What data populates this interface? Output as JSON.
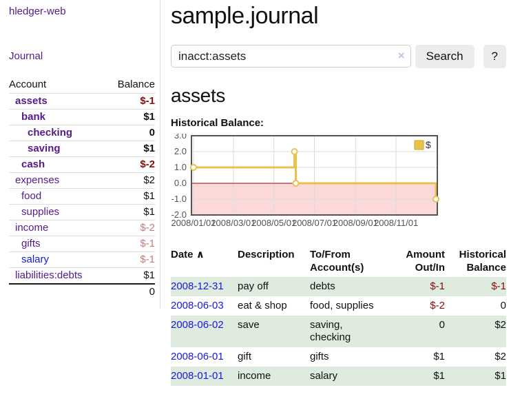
{
  "palette": {
    "link_purple": "#551a8b",
    "link_blue": "#1717e0",
    "negative_red": "#8b0b0b",
    "negative_rose": "#c27e7e",
    "row_stripe_green": "#deebde",
    "chart_line_gold": "#e8c24a",
    "chart_negative_pink": "#fcd9d9",
    "chart_zero_line": "#a40000",
    "button_gray": "#ececec"
  },
  "app_title": "hledger-web",
  "sidebar": {
    "journal_link": "Journal",
    "accounts": {
      "headers": {
        "account": "Account",
        "balance": "Balance"
      },
      "rows": [
        {
          "name": "assets",
          "balance": "$-1"
        },
        {
          "name": "bank",
          "balance": "$1"
        },
        {
          "name": "checking",
          "balance": "0"
        },
        {
          "name": "saving",
          "balance": "$1"
        },
        {
          "name": "cash",
          "balance": "$-2"
        },
        {
          "name": "expenses",
          "balance": "$2"
        },
        {
          "name": "food",
          "balance": "$1"
        },
        {
          "name": "supplies",
          "balance": "$1"
        },
        {
          "name": "income",
          "balance": "$-2"
        },
        {
          "name": "gifts",
          "balance": "$-1"
        },
        {
          "name": "salary",
          "balance": "$-1"
        },
        {
          "name": "liabilities:debts",
          "balance": "$1"
        }
      ],
      "total": "0"
    }
  },
  "header": {
    "title": "sample.journal"
  },
  "search": {
    "value": "inacct:assets",
    "clear_icon": "×",
    "search_button": "Search",
    "help_button": "?"
  },
  "account_page": {
    "heading": "assets",
    "chart_heading": "Historical Balance:"
  },
  "chart_data": {
    "type": "line",
    "title": "Historical Balance",
    "step": true,
    "legend_label": "$",
    "legend_position": "top-right",
    "grid": true,
    "xlim": [
      "2008-01-01",
      "2008-12-31"
    ],
    "ylim": [
      -2,
      3
    ],
    "x_ticks": [
      {
        "date": "2008-01-01",
        "label": "2008/01/01"
      },
      {
        "date": "2008-03-01",
        "label": "2008/03/01"
      },
      {
        "date": "2008-05-01",
        "label": "2008/05/01"
      },
      {
        "date": "2008-07-01",
        "label": "2008/07/01"
      },
      {
        "date": "2008-09-01",
        "label": "2008/09/01"
      },
      {
        "date": "2008-11-01",
        "label": "2008/11/01"
      }
    ],
    "y_ticks": [
      {
        "value": 3,
        "label": "3.0"
      },
      {
        "value": 2,
        "label": "2.0"
      },
      {
        "value": 1,
        "label": "1.0"
      },
      {
        "value": 0,
        "label": "0.0"
      },
      {
        "value": -1,
        "label": "-1.0"
      },
      {
        "value": -2,
        "label": "-2.0"
      }
    ],
    "series": [
      {
        "name": "$",
        "color": "#e8c24a",
        "points": [
          [
            "2008-01-01",
            1
          ],
          [
            "2008-06-01",
            2
          ],
          [
            "2008-06-03",
            0
          ],
          [
            "2008-12-31",
            -1
          ]
        ]
      }
    ],
    "negative_region_color": "#fcd9d9",
    "zero_line_color": "#a40000"
  },
  "register": {
    "headers": {
      "date": "Date",
      "sort_icon": "∧",
      "description": "Description",
      "accounts": "To/From Account(s)",
      "amount": "Amount Out/In",
      "balance": "Historical Balance"
    },
    "rows": [
      {
        "date": "2008-12-31",
        "description": "pay off",
        "accounts": "debts",
        "amount": "$-1",
        "balance": "$-1"
      },
      {
        "date": "2008-06-03",
        "description": "eat & shop",
        "accounts": "food, supplies",
        "amount": "$-2",
        "balance": "0"
      },
      {
        "date": "2008-06-02",
        "description": "save",
        "accounts": "saving, checking",
        "amount": "0",
        "balance": "$2"
      },
      {
        "date": "2008-06-01",
        "description": "gift",
        "accounts": "gifts",
        "amount": "$1",
        "balance": "$2"
      },
      {
        "date": "2008-01-01",
        "description": "income",
        "accounts": "salary",
        "amount": "$1",
        "balance": "$1"
      }
    ]
  }
}
